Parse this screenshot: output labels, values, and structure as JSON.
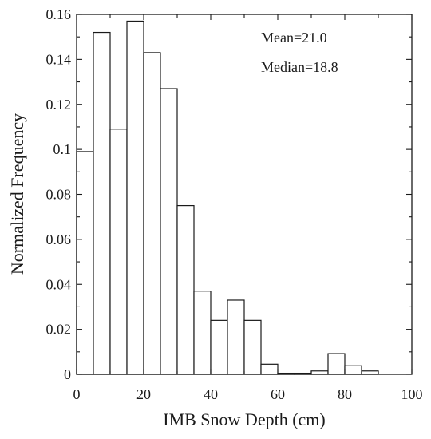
{
  "chart_data": {
    "type": "bar",
    "title": "",
    "xlabel": "IMB Snow Depth (cm)",
    "ylabel": "Normalized Frequency",
    "xlim": [
      0,
      100
    ],
    "ylim": [
      0,
      0.16
    ],
    "bin_width": 5,
    "bin_starts": [
      0,
      5,
      10,
      15,
      20,
      25,
      30,
      35,
      40,
      45,
      50,
      55,
      60,
      65,
      70,
      75,
      80,
      85,
      90,
      95
    ],
    "values": [
      0.099,
      0.152,
      0.109,
      0.157,
      0.143,
      0.127,
      0.075,
      0.037,
      0.024,
      0.033,
      0.024,
      0.0045,
      0.0005,
      0.0005,
      0.0015,
      0.0092,
      0.0038,
      0.0015,
      0,
      0
    ],
    "x_ticks": [
      0,
      20,
      40,
      60,
      80,
      100
    ],
    "x_tick_labels": [
      "0",
      "20",
      "40",
      "60",
      "80",
      "100"
    ],
    "y_ticks": [
      0,
      0.02,
      0.04,
      0.06,
      0.08,
      0.1,
      0.12,
      0.14,
      0.16
    ],
    "y_tick_labels": [
      "0",
      "0.02",
      "0.04",
      "0.06",
      "0.08",
      "0.1",
      "0.12",
      "0.14",
      "0.16"
    ],
    "grid": false,
    "annotations": [
      "Mean=21.0",
      "Median=18.8"
    ]
  },
  "colors": {
    "bar_fill": "#ffffff",
    "bar_stroke": "#1a1a1a",
    "text": "#1a1a1a"
  }
}
